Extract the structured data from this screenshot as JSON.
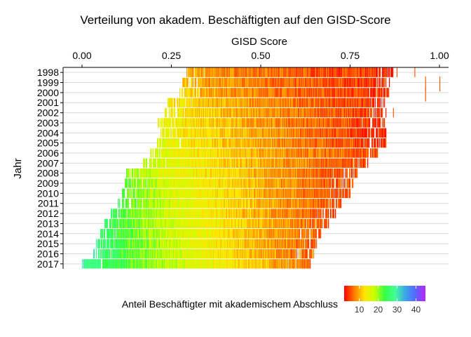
{
  "chart_data": {
    "type": "heatmap",
    "title": "Verteilung von akadem. Beschäftigten auf den GISD-Score",
    "xlabel": "GISD Score",
    "ylabel": "Jahr",
    "x_axis_position": "top",
    "xlim": [
      0,
      1
    ],
    "x_ticks": [
      0,
      0.25,
      0.5,
      0.75,
      1
    ],
    "x_tick_labels": [
      "0.00",
      "0.25",
      "0.50",
      "0.75",
      "1.00"
    ],
    "categories": [
      "1998",
      "1999",
      "2000",
      "2001",
      "2002",
      "2003",
      "2004",
      "2005",
      "2006",
      "2007",
      "2008",
      "2009",
      "2010",
      "2011",
      "2012",
      "2013",
      "2014",
      "2015",
      "2016",
      "2017"
    ],
    "rows": [
      {
        "year": "1998",
        "xmin": 0.29,
        "xmax": 0.87,
        "c_lo": 10,
        "c_hi": 4,
        "peak": 0.55,
        "outliers": [
          0.88,
          0.93
        ]
      },
      {
        "year": "1999",
        "xmin": 0.28,
        "xmax": 0.86,
        "c_lo": 11,
        "c_hi": 4,
        "peak": 0.55,
        "outliers": [
          0.96,
          1.0
        ]
      },
      {
        "year": "2000",
        "xmin": 0.27,
        "xmax": 0.86,
        "c_lo": 12,
        "c_hi": 4,
        "peak": 0.55,
        "outliers": [
          0.96
        ]
      },
      {
        "year": "2001",
        "xmin": 0.24,
        "xmax": 0.85,
        "c_lo": 14,
        "c_hi": 4,
        "peak": 0.54,
        "outliers": []
      },
      {
        "year": "2002",
        "xmin": 0.23,
        "xmax": 0.85,
        "c_lo": 15,
        "c_hi": 4,
        "peak": 0.54,
        "outliers": [
          0.87
        ]
      },
      {
        "year": "2003",
        "xmin": 0.21,
        "xmax": 0.85,
        "c_lo": 16,
        "c_hi": 4,
        "peak": 0.53,
        "outliers": []
      },
      {
        "year": "2004",
        "xmin": 0.22,
        "xmax": 0.85,
        "c_lo": 16,
        "c_hi": 4,
        "peak": 0.53,
        "outliers": []
      },
      {
        "year": "2005",
        "xmin": 0.21,
        "xmax": 0.85,
        "c_lo": 17,
        "c_hi": 4,
        "peak": 0.52,
        "outliers": []
      },
      {
        "year": "2006",
        "xmin": 0.19,
        "xmax": 0.83,
        "c_lo": 18,
        "c_hi": 5,
        "peak": 0.51,
        "outliers": []
      },
      {
        "year": "2007",
        "xmin": 0.17,
        "xmax": 0.8,
        "c_lo": 19,
        "c_hi": 5,
        "peak": 0.5,
        "outliers": []
      },
      {
        "year": "2008",
        "xmin": 0.12,
        "xmax": 0.77,
        "c_lo": 21,
        "c_hi": 5,
        "peak": 0.49,
        "outliers": []
      },
      {
        "year": "2009",
        "xmin": 0.12,
        "xmax": 0.76,
        "c_lo": 22,
        "c_hi": 5,
        "peak": 0.48,
        "outliers": []
      },
      {
        "year": "2010",
        "xmin": 0.11,
        "xmax": 0.75,
        "c_lo": 23,
        "c_hi": 5,
        "peak": 0.47,
        "outliers": []
      },
      {
        "year": "2011",
        "xmin": 0.1,
        "xmax": 0.73,
        "c_lo": 24,
        "c_hi": 5,
        "peak": 0.46,
        "outliers": []
      },
      {
        "year": "2012",
        "xmin": 0.08,
        "xmax": 0.71,
        "c_lo": 25,
        "c_hi": 5,
        "peak": 0.45,
        "outliers": []
      },
      {
        "year": "2013",
        "xmin": 0.06,
        "xmax": 0.69,
        "c_lo": 26,
        "c_hi": 6,
        "peak": 0.44,
        "outliers": []
      },
      {
        "year": "2014",
        "xmin": 0.05,
        "xmax": 0.67,
        "c_lo": 27,
        "c_hi": 6,
        "peak": 0.43,
        "outliers": []
      },
      {
        "year": "2015",
        "xmin": 0.04,
        "xmax": 0.66,
        "c_lo": 28,
        "c_hi": 6,
        "peak": 0.42,
        "outliers": []
      },
      {
        "year": "2016",
        "xmin": 0.03,
        "xmax": 0.65,
        "c_lo": 29,
        "c_hi": 6,
        "peak": 0.41,
        "outliers": []
      },
      {
        "year": "2017",
        "xmin": 0.0,
        "xmax": 0.64,
        "c_lo": 30,
        "c_hi": 7,
        "peak": 0.4,
        "outliers": []
      }
    ],
    "color_legend": {
      "title": "Anteil Beschäftigter mit akademischem Abschluss",
      "range": [
        2,
        45
      ],
      "ticks": [
        10,
        20,
        30,
        40
      ],
      "tick_labels": [
        "10",
        "20",
        "30",
        "40"
      ],
      "colors": [
        "#ff0000",
        "#ff7a00",
        "#ffe600",
        "#c8ff00",
        "#33ff44",
        "#44ff99",
        "#3aa8e8",
        "#5468ff",
        "#bb22ff"
      ]
    },
    "grid": true,
    "legend_position": "bottom"
  }
}
